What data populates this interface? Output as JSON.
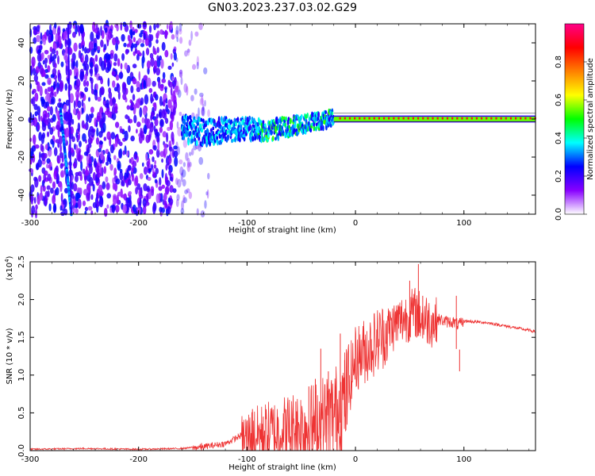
{
  "figure": {
    "title": "GN03.2023.237.03.02.G29"
  },
  "chart_data": [
    {
      "type": "heatmap",
      "xlabel": "Height of straight line (km)",
      "ylabel": "Frequency (Hz)",
      "xlim": [
        -300,
        166
      ],
      "ylim": [
        -50,
        50
      ],
      "xticks": [
        -300,
        -200,
        -100,
        0,
        100
      ],
      "yticks": [
        -40,
        -20,
        0,
        20,
        40
      ],
      "grid": false,
      "colorbar": {
        "label": "Normalized spectral amplitude",
        "range": [
          0,
          1
        ],
        "ticks": [
          "0.0",
          "0.2",
          "0.4",
          "0.6",
          "0.8"
        ],
        "colormap": [
          "#ffffff",
          "#8800ff",
          "#0000ff",
          "#00ffff",
          "#00ff00",
          "#ffff00",
          "#ff8000",
          "#ff0000",
          "#ff0088"
        ]
      },
      "features": {
        "noise_region_x": [
          -300,
          -135
        ],
        "faint_noise_region_x": [
          -170,
          -130
        ],
        "dispersion_line": {
          "x": [
            -272,
            -262
          ],
          "y": [
            5,
            -50
          ]
        },
        "vertical_stroke": {
          "x": [
            -265,
            -262
          ],
          "y": [
            50,
            -50
          ]
        },
        "signal_band": {
          "x": [
            -160,
            -140,
            -120,
            -100,
            -80,
            -60,
            -40,
            -25,
            -10,
            0,
            50,
            100,
            166
          ],
          "y": [
            -5,
            -7,
            -6,
            -5,
            -6,
            -4,
            -2,
            0,
            1,
            0.5,
            0.5,
            0.5,
            0.5
          ]
        },
        "steady_tone_x": [
          -20,
          166
        ]
      }
    },
    {
      "type": "line",
      "ylabel": "SNR (10 * v/v)",
      "xlabel": "Height of straight line (km)",
      "exponent_label": "(x10",
      "exponent_power": "4",
      "exponent_close": ")",
      "xlim": [
        -300,
        166
      ],
      "ylim": [
        0,
        2.5
      ],
      "xticks": [
        -300,
        -200,
        -100,
        0,
        100
      ],
      "yticks": [
        "0.0",
        "0.5",
        "1.0",
        "1.5",
        "2.0",
        "2.5"
      ],
      "grid": false,
      "color": "#ee3333",
      "series": [
        {
          "x": [
            -300,
            -250,
            -200,
            -160,
            -140,
            -120,
            -100,
            -80,
            -60,
            -40,
            -20,
            -10,
            0,
            20,
            40,
            55,
            60,
            70,
            85,
            90,
            95,
            100,
            120,
            140,
            166
          ],
          "y": [
            0.02,
            0.03,
            0.02,
            0.03,
            0.06,
            0.1,
            0.25,
            0.32,
            0.38,
            0.45,
            0.6,
            0.8,
            1.3,
            1.55,
            1.78,
            1.9,
            1.85,
            1.78,
            1.72,
            1.72,
            1.68,
            1.72,
            1.7,
            1.65,
            1.58
          ]
        }
      ],
      "spikes": [
        {
          "x": -142,
          "y": 0.1
        },
        {
          "x": -95,
          "y": 0.55
        },
        {
          "x": -85,
          "y": 0.45
        },
        {
          "x": -55,
          "y": 0.65
        },
        {
          "x": -43,
          "y": 0.85
        },
        {
          "x": -37,
          "y": 0.95
        },
        {
          "x": -32,
          "y": 1.35
        },
        {
          "x": -25,
          "y": 1.05
        },
        {
          "x": -14,
          "y": 1.55
        },
        {
          "x": -10,
          "y": 1.2
        },
        {
          "x": 50,
          "y": 2.25
        },
        {
          "x": 58,
          "y": 2.47
        },
        {
          "x": 62,
          "y": 2.05
        },
        {
          "x": 93,
          "y": 2.05
        },
        {
          "x": 96,
          "y": 1.05
        }
      ]
    }
  ]
}
